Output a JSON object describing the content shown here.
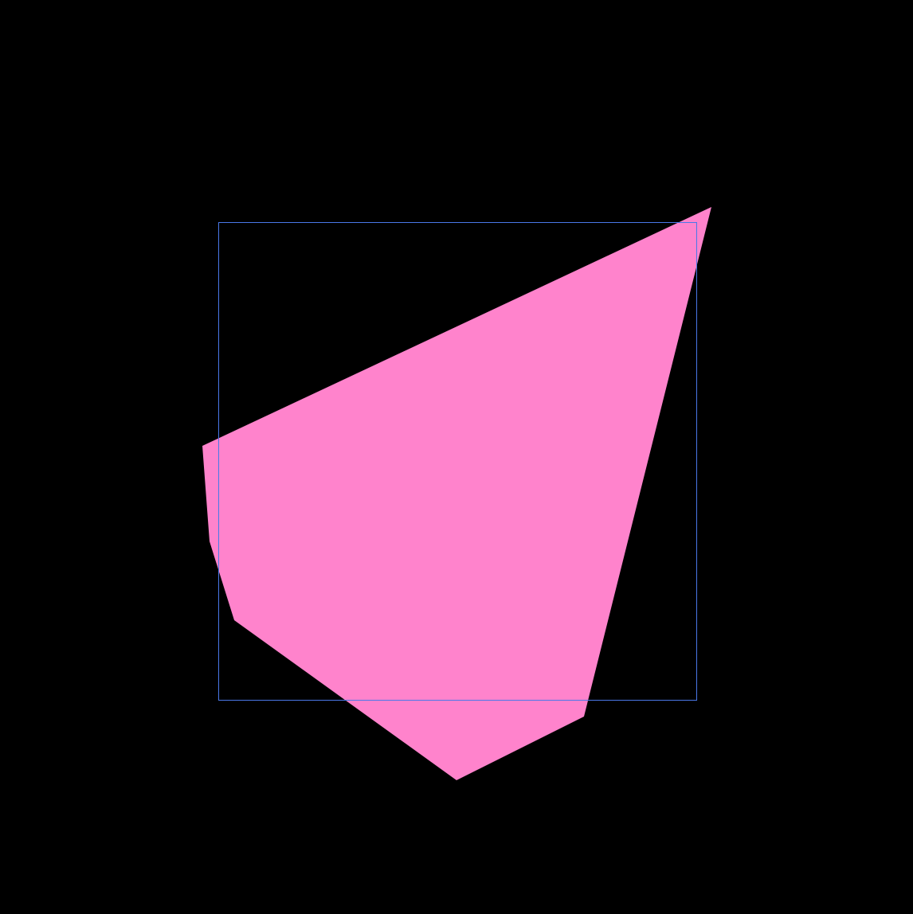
{
  "colors": {
    "background": "#000000",
    "polygon_fill": "#ff83cc",
    "frame_stroke": "#4a78e8"
  }
}
